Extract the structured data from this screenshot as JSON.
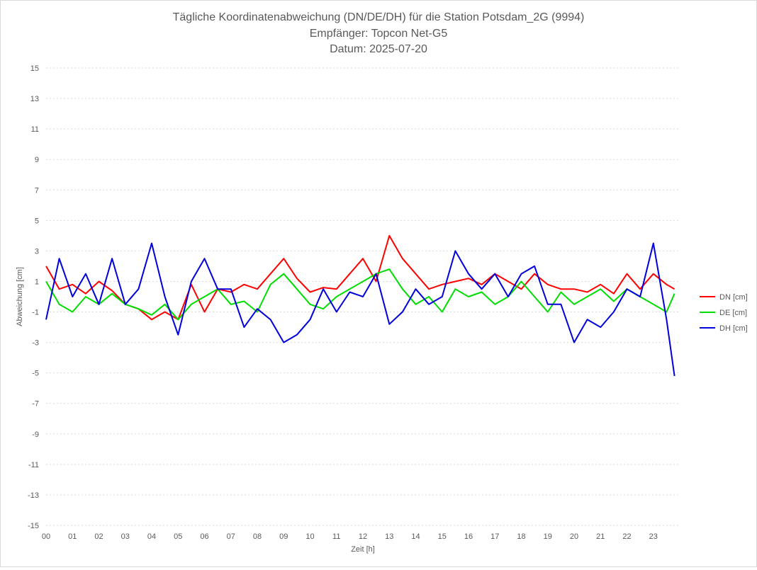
{
  "chart_data": {
    "type": "line",
    "title": "Tägliche Koordinatenabweichung (DN/DE/DH) für die Station Potsdam_2G (9994)",
    "subtitle_lines": [
      "Empfänger: Topcon Net-G5",
      "Datum: 2025-07-20"
    ],
    "xlabel": "Zeit [h]",
    "ylabel": "Abweichung [cm]",
    "x_tick_labels": [
      "00",
      "01",
      "02",
      "03",
      "04",
      "05",
      "06",
      "07",
      "08",
      "09",
      "10",
      "11",
      "12",
      "13",
      "14",
      "15",
      "16",
      "17",
      "18",
      "19",
      "20",
      "21",
      "22",
      "23"
    ],
    "xlim": [
      0,
      24
    ],
    "ylim": [
      -15,
      15
    ],
    "y_tick_labels": [
      "15",
      "13",
      "11",
      "9",
      "7",
      "5",
      "3",
      "1",
      "-1",
      "-3",
      "-5",
      "-7",
      "-9",
      "-11",
      "-13",
      "-15"
    ],
    "grid": "horizontal-dotted",
    "legend_position": "right",
    "x": [
      0,
      0.5,
      1,
      1.5,
      2,
      2.5,
      3,
      3.5,
      4,
      4.5,
      5,
      5.5,
      6,
      6.5,
      7,
      7.5,
      8,
      8.5,
      9,
      9.5,
      10,
      10.5,
      11,
      11.5,
      12,
      12.5,
      13,
      13.5,
      14,
      14.5,
      15,
      15.5,
      16,
      16.5,
      17,
      17.5,
      18,
      18.5,
      19,
      19.5,
      20,
      20.5,
      21,
      21.5,
      22,
      22.5,
      23,
      23.5,
      23.8
    ],
    "series": [
      {
        "name": "DN [cm]",
        "color": "#ff0000",
        "values": [
          2.0,
          0.5,
          0.8,
          0.2,
          1.0,
          0.4,
          -0.5,
          -0.8,
          -1.5,
          -1.0,
          -1.5,
          0.8,
          -1.0,
          0.5,
          0.3,
          0.8,
          0.5,
          1.5,
          2.5,
          1.2,
          0.3,
          0.6,
          0.5,
          1.5,
          2.5,
          1.0,
          4.0,
          2.5,
          1.5,
          0.5,
          0.8,
          1.0,
          1.2,
          0.8,
          1.5,
          1.0,
          0.5,
          1.5,
          0.8,
          0.5,
          0.5,
          0.3,
          0.8,
          0.2,
          1.5,
          0.5,
          1.5,
          0.8,
          0.5
        ]
      },
      {
        "name": "DE [cm]",
        "color": "#00dd00",
        "values": [
          1.0,
          -0.5,
          -1.0,
          0.0,
          -0.5,
          0.2,
          -0.5,
          -0.8,
          -1.2,
          -0.5,
          -1.5,
          -0.5,
          0.0,
          0.5,
          -0.5,
          -0.3,
          -1.0,
          0.8,
          1.5,
          0.5,
          -0.5,
          -0.8,
          0.0,
          0.5,
          1.0,
          1.5,
          1.8,
          0.5,
          -0.5,
          0.0,
          -1.0,
          0.5,
          0.0,
          0.3,
          -0.5,
          0.0,
          1.0,
          0.0,
          -1.0,
          0.3,
          -0.5,
          0.0,
          0.5,
          -0.3,
          0.5,
          0.0,
          -0.5,
          -1.0,
          0.2
        ]
      },
      {
        "name": "DH [cm]",
        "color": "#0000dd",
        "values": [
          -1.5,
          2.5,
          0.0,
          1.5,
          -0.5,
          2.5,
          -0.5,
          0.5,
          3.5,
          0.0,
          -2.5,
          1.0,
          2.5,
          0.5,
          0.5,
          -2.0,
          -0.8,
          -1.5,
          -3.0,
          -2.5,
          -1.5,
          0.5,
          -1.0,
          0.3,
          0.0,
          1.5,
          -1.8,
          -1.0,
          0.5,
          -0.5,
          0.0,
          3.0,
          1.5,
          0.5,
          1.5,
          0.0,
          1.5,
          2.0,
          -0.5,
          -0.5,
          -3.0,
          -1.5,
          -2.0,
          -1.0,
          0.5,
          0.0,
          3.5,
          -1.5,
          -5.2
        ]
      }
    ]
  }
}
